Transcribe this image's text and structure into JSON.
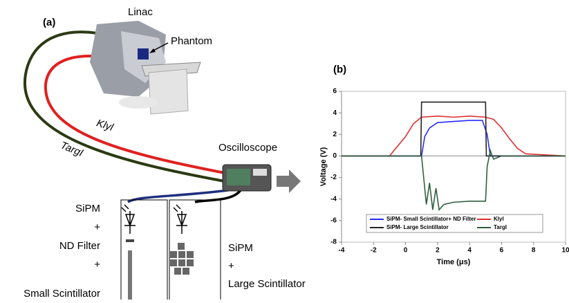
{
  "panel_a": {
    "label": "(a)",
    "linac": "Linac",
    "phantom": "Phantom",
    "cable_1": "Klyl",
    "cable_2": "TargI",
    "oscilloscope": "Oscilloscope",
    "small_setup": [
      "SiPM",
      "+",
      "ND Filter",
      "+",
      "Small Scintillator"
    ],
    "large_setup": [
      "SiPM",
      "+",
      "Large Scintillator"
    ]
  },
  "chart_data": {
    "type": "line",
    "panel_label": "(b)",
    "x_label": "Time (μs)",
    "y_label": "Voltage (V)",
    "xlim": [
      -4,
      10
    ],
    "ylim": [
      -8,
      6
    ],
    "xticks": [
      -4,
      -2,
      0,
      2,
      4,
      6,
      8,
      10
    ],
    "yticks": [
      -8,
      -6,
      -4,
      -2,
      0,
      2,
      4,
      6
    ],
    "series": [
      {
        "name": "SiPM- Small Scintillator+ ND Filter",
        "color": "#2a2aff",
        "x": [
          -4,
          1,
          1.2,
          1.5,
          2,
          3,
          4,
          4.8,
          5.1,
          5.3,
          10
        ],
        "values": [
          0,
          0,
          1.8,
          2.6,
          3.1,
          3.2,
          3.3,
          3.3,
          2.0,
          0,
          0
        ]
      },
      {
        "name": "Klyl",
        "color": "#e03030",
        "x": [
          -4,
          -1,
          0,
          0.5,
          1,
          2,
          3,
          4,
          5,
          5.5,
          6,
          6.5,
          7,
          7.5,
          10
        ],
        "values": [
          0,
          0,
          1.8,
          3.0,
          3.6,
          3.7,
          3.6,
          3.7,
          3.6,
          3.4,
          2.6,
          1.6,
          0.7,
          0.2,
          0
        ]
      },
      {
        "name": "SiPM- Large Scintillator",
        "color": "#222222",
        "x": [
          -4,
          0.95,
          1,
          5,
          5.05,
          10
        ],
        "values": [
          0,
          0,
          5,
          5,
          0,
          0
        ]
      },
      {
        "name": "TargI",
        "color": "#2f5f3f",
        "x": [
          -4,
          1,
          1.1,
          1.3,
          1.5,
          1.7,
          1.9,
          2.1,
          2.4,
          3,
          4,
          5,
          5.1,
          5.3,
          5.5,
          6,
          10
        ],
        "values": [
          0,
          0,
          -1.5,
          -4.5,
          -2.5,
          -5,
          -3,
          -5,
          -4.5,
          -4.3,
          -4.2,
          -4.2,
          -1,
          0.5,
          -0.3,
          0,
          0
        ]
      }
    ]
  }
}
